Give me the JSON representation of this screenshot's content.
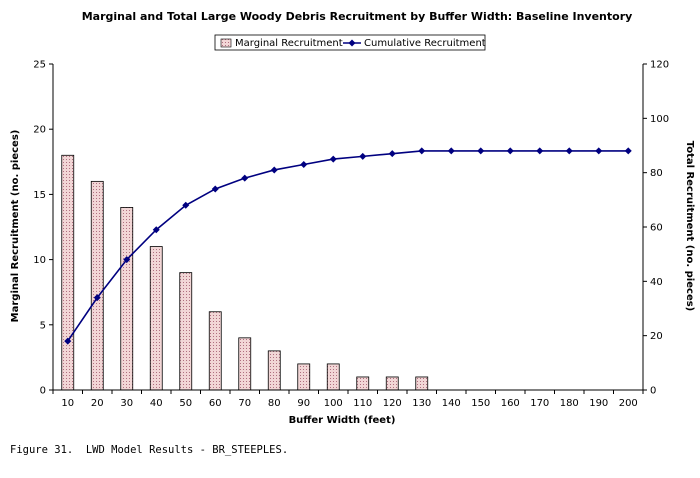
{
  "chart_data": {
    "type": "bar",
    "title": "Marginal and Total Large Woody Debris Recruitment by Buffer Width:  Baseline Inventory",
    "xlabel": "Buffer Width (feet)",
    "ylabel": "Marginal Recruitment (no. pieces)",
    "y2label": "Total Recruitment (no. pieces)",
    "categories": [
      "10",
      "20",
      "30",
      "40",
      "50",
      "60",
      "70",
      "80",
      "90",
      "100",
      "110",
      "120",
      "130",
      "140",
      "150",
      "160",
      "170",
      "180",
      "190",
      "200"
    ],
    "ylim": [
      0,
      25
    ],
    "yticks": [
      0,
      5,
      10,
      15,
      20,
      25
    ],
    "y2lim": [
      0,
      120
    ],
    "y2ticks": [
      0,
      20,
      40,
      60,
      80,
      100,
      120
    ],
    "grid": false,
    "legend_position": "top-center",
    "series": [
      {
        "name": "Marginal Recruitment",
        "type": "bar",
        "axis": "left",
        "values": [
          18,
          16,
          14,
          11,
          9,
          6,
          4,
          3,
          2,
          2,
          1,
          1,
          1,
          0,
          0,
          0,
          0,
          0,
          0,
          0
        ],
        "color": "#f2d6d6"
      },
      {
        "name": "Cumulative Recruitment",
        "type": "line",
        "axis": "right",
        "values": [
          18,
          34,
          48,
          59,
          68,
          74,
          78,
          81,
          83,
          85,
          86,
          87,
          88,
          88,
          88,
          88,
          88,
          88,
          88,
          88
        ],
        "color": "#000080"
      }
    ]
  },
  "caption": "Figure 31.  LWD Model Results - BR_STEEPLES."
}
